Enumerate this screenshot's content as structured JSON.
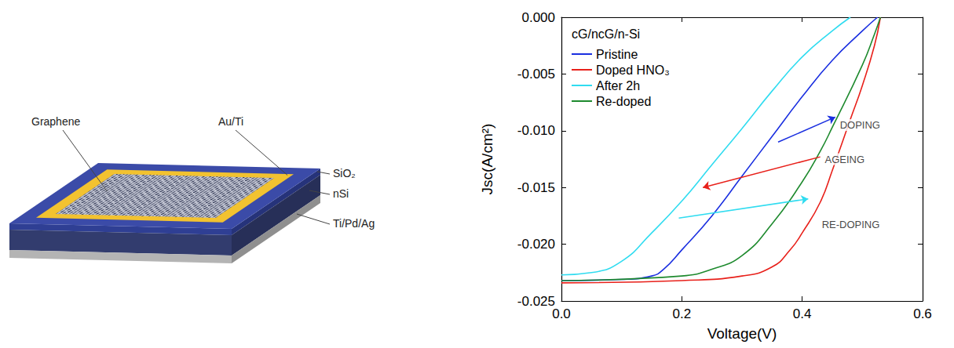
{
  "diagram": {
    "labels": {
      "graphene": "Graphene",
      "contact": "Au/Ti",
      "oxide": "SiO₂",
      "substrate": "nSi",
      "back_contact": "Ti/Pd/Ag"
    }
  },
  "chart_data": {
    "type": "line",
    "title": "cG/ncG/n-Si",
    "xlabel": "Voltage(V)",
    "ylabel": "Jsc(A/cm²)",
    "xlim": [
      0,
      0.6
    ],
    "xticks": [
      {
        "value": 0,
        "label": "0.0"
      },
      {
        "value": 0.2,
        "label": "0.2"
      },
      {
        "value": 0.4,
        "label": "0.4"
      },
      {
        "value": 0.6,
        "label": "0.6"
      }
    ],
    "ylim": [
      -0.025,
      0
    ],
    "yticks": [
      {
        "value": -0.025,
        "label": "-0.025"
      },
      {
        "value": -0.02,
        "label": "-0.020"
      },
      {
        "value": -0.015,
        "label": "-0.015"
      },
      {
        "value": -0.01,
        "label": "-0.010"
      },
      {
        "value": -0.005,
        "label": "-0.005"
      },
      {
        "value": 0,
        "label": "0.000"
      }
    ],
    "grid": false,
    "legend": "top-left",
    "series": [
      {
        "name": "Pristine",
        "color": "#1a2fe0",
        "x": [
          0,
          0.1,
          0.15,
          0.17,
          0.2,
          0.25,
          0.3,
          0.35,
          0.4,
          0.45,
          0.5,
          0.525
        ],
        "values": [
          -0.0232,
          -0.0231,
          -0.0228,
          -0.0222,
          -0.0205,
          -0.0175,
          -0.014,
          -0.0105,
          -0.007,
          -0.0038,
          -0.0012,
          0
        ]
      },
      {
        "name": "Doped HNO₃",
        "color": "#e8201a",
        "x": [
          0,
          0.2,
          0.3,
          0.35,
          0.38,
          0.4,
          0.43,
          0.45,
          0.48,
          0.5,
          0.52,
          0.53
        ],
        "values": [
          -0.0234,
          -0.0232,
          -0.0228,
          -0.022,
          -0.0205,
          -0.019,
          -0.0163,
          -0.0135,
          -0.009,
          -0.006,
          -0.0025,
          0
        ]
      },
      {
        "name": "After 2h",
        "color": "#30dcf0",
        "x": [
          0,
          0.05,
          0.1,
          0.15,
          0.2,
          0.25,
          0.3,
          0.35,
          0.4,
          0.45,
          0.48
        ],
        "values": [
          -0.0227,
          -0.0225,
          -0.0215,
          -0.019,
          -0.0162,
          -0.013,
          -0.0098,
          -0.0065,
          -0.0035,
          -0.0012,
          0
        ]
      },
      {
        "name": "Re-doped",
        "color": "#1e8a2e",
        "x": [
          0,
          0.2,
          0.25,
          0.3,
          0.35,
          0.4,
          0.43,
          0.45,
          0.5,
          0.52,
          0.53
        ],
        "values": [
          -0.0232,
          -0.0228,
          -0.0222,
          -0.021,
          -0.0182,
          -0.0145,
          -0.0118,
          -0.0097,
          -0.0042,
          -0.0015,
          0
        ]
      }
    ],
    "annotations": [
      {
        "text": "DOPING",
        "x": 0.46,
        "y": -0.0095,
        "color": "#1a2fe0",
        "arrow_from": [
          0.36,
          -0.011
        ],
        "arrow_to": [
          0.455,
          -0.0088
        ]
      },
      {
        "text": "AGEING",
        "x": 0.435,
        "y": -0.0125,
        "color": "#e8201a",
        "arrow_from": [
          0.43,
          -0.0123
        ],
        "arrow_to": [
          0.235,
          -0.015
        ]
      },
      {
        "text": "RE-DOPING",
        "x": 0.43,
        "y": -0.0183,
        "color": "#30dcf0",
        "arrow_from": [
          0.195,
          -0.0177
        ],
        "arrow_to": [
          0.41,
          -0.016
        ]
      }
    ]
  }
}
